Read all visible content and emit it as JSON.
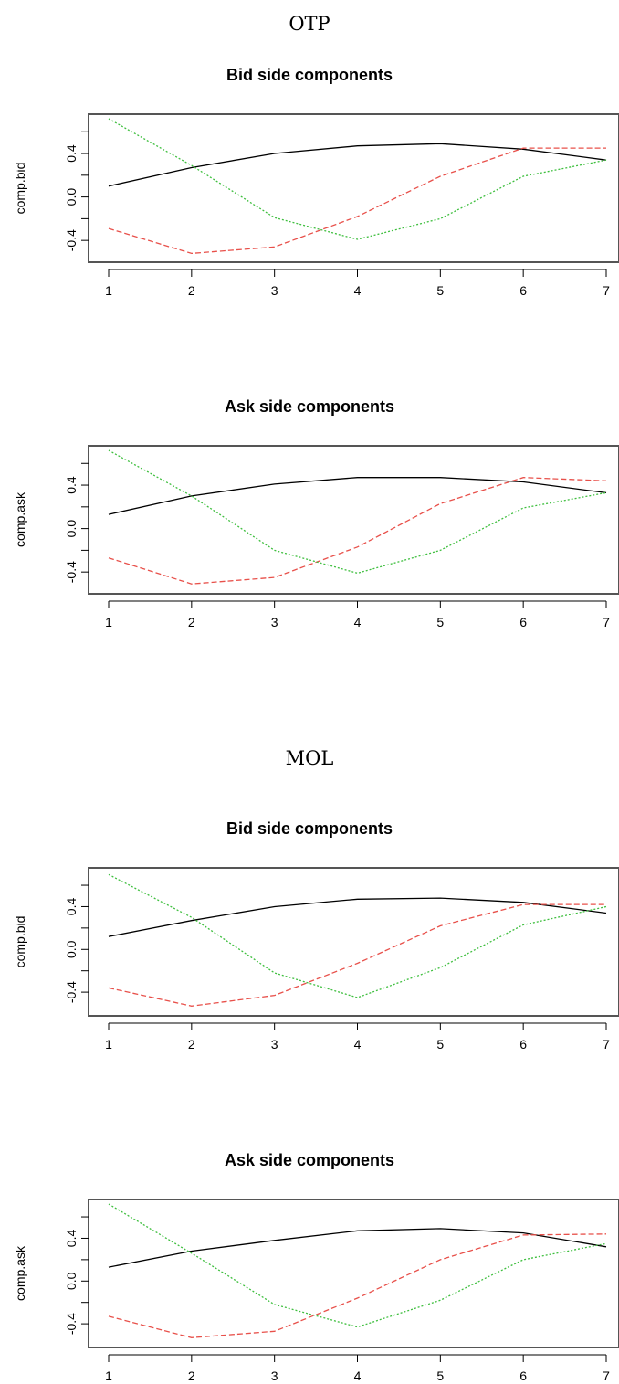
{
  "sections": [
    {
      "title": "OTP"
    },
    {
      "title": "MOL"
    }
  ],
  "series_styles": [
    {
      "color": "#000000",
      "dash": "none"
    },
    {
      "color": "#e8504a",
      "dash": "dashed"
    },
    {
      "color": "#3fbf3f",
      "dash": "dotted"
    }
  ],
  "chart_data": [
    {
      "type": "line",
      "title": "Bid side components",
      "ylabel": "comp.bid",
      "x": [
        1,
        2,
        3,
        4,
        5,
        6,
        7
      ],
      "xticks": [
        "1",
        "2",
        "3",
        "4",
        "5",
        "6",
        "7"
      ],
      "yticks": [
        {
          "value": -0.4,
          "label": "-0.4"
        },
        {
          "value": 0.0,
          "label": "0.0"
        },
        {
          "value": 0.4,
          "label": "0.4"
        }
      ],
      "ylim": [
        -0.55,
        0.72
      ],
      "series": [
        {
          "values": [
            0.1,
            0.27,
            0.4,
            0.47,
            0.49,
            0.44,
            0.34
          ]
        },
        {
          "values": [
            -0.29,
            -0.52,
            -0.46,
            -0.18,
            0.19,
            0.45,
            0.45
          ]
        },
        {
          "values": [
            0.72,
            0.29,
            -0.19,
            -0.39,
            -0.2,
            0.19,
            0.34
          ]
        }
      ]
    },
    {
      "type": "line",
      "title": "Ask side components",
      "ylabel": "comp.ask",
      "x": [
        1,
        2,
        3,
        4,
        5,
        6,
        7
      ],
      "xticks": [
        "1",
        "2",
        "3",
        "4",
        "5",
        "6",
        "7"
      ],
      "yticks": [
        {
          "value": -0.4,
          "label": "-0.4"
        },
        {
          "value": 0.0,
          "label": "0.0"
        },
        {
          "value": 0.4,
          "label": "0.4"
        }
      ],
      "ylim": [
        -0.55,
        0.72
      ],
      "series": [
        {
          "values": [
            0.13,
            0.3,
            0.41,
            0.47,
            0.47,
            0.43,
            0.33
          ]
        },
        {
          "values": [
            -0.27,
            -0.51,
            -0.45,
            -0.17,
            0.23,
            0.47,
            0.44
          ]
        },
        {
          "values": [
            0.72,
            0.3,
            -0.2,
            -0.41,
            -0.2,
            0.19,
            0.33
          ]
        }
      ]
    },
    {
      "type": "line",
      "title": "Bid side components",
      "ylabel": "comp.bid",
      "x": [
        1,
        2,
        3,
        4,
        5,
        6,
        7
      ],
      "xticks": [
        "1",
        "2",
        "3",
        "4",
        "5",
        "6",
        "7"
      ],
      "yticks": [
        {
          "value": -0.4,
          "label": "-0.4"
        },
        {
          "value": 0.0,
          "label": "0.0"
        },
        {
          "value": 0.4,
          "label": "0.4"
        }
      ],
      "ylim": [
        -0.57,
        0.72
      ],
      "series": [
        {
          "values": [
            0.12,
            0.27,
            0.4,
            0.47,
            0.48,
            0.44,
            0.34
          ]
        },
        {
          "values": [
            -0.36,
            -0.53,
            -0.43,
            -0.13,
            0.22,
            0.42,
            0.42
          ]
        },
        {
          "values": [
            0.7,
            0.3,
            -0.22,
            -0.45,
            -0.17,
            0.23,
            0.4
          ]
        }
      ]
    },
    {
      "type": "line",
      "title": "Ask side components",
      "ylabel": "comp.ask",
      "x": [
        1,
        2,
        3,
        4,
        5,
        6,
        7
      ],
      "xticks": [
        "1",
        "2",
        "3",
        "4",
        "5",
        "6",
        "7"
      ],
      "yticks": [
        {
          "value": -0.4,
          "label": "-0.4"
        },
        {
          "value": 0.0,
          "label": "0.0"
        },
        {
          "value": 0.4,
          "label": "0.4"
        }
      ],
      "ylim": [
        -0.57,
        0.72
      ],
      "series": [
        {
          "values": [
            0.13,
            0.28,
            0.38,
            0.47,
            0.49,
            0.45,
            0.32
          ]
        },
        {
          "values": [
            -0.33,
            -0.53,
            -0.47,
            -0.16,
            0.2,
            0.43,
            0.44
          ]
        },
        {
          "values": [
            0.72,
            0.26,
            -0.22,
            -0.43,
            -0.18,
            0.2,
            0.35
          ]
        }
      ]
    }
  ]
}
